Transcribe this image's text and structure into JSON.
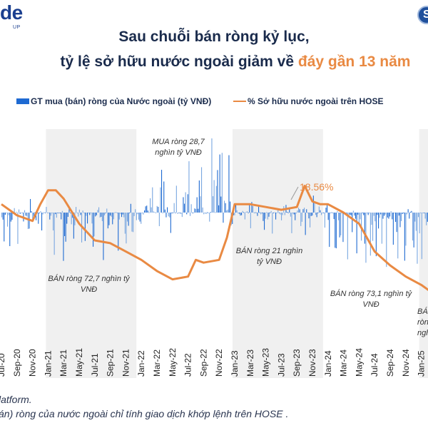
{
  "brand": {
    "logo_text": "de",
    "logo_sub": "UP",
    "badge_text": "S"
  },
  "title": {
    "line1": "Sau chuỗi bán ròng kỷ lục,",
    "line2_prefix": "tỷ lệ sở hữu nước ngoài giảm về ",
    "line2_highlight": "đáy gần 13 năm"
  },
  "colors": {
    "bar": "#1e6ad2",
    "line": "#e98a43",
    "shade": "#f0f0f0",
    "title": "#1a2b4c"
  },
  "legend": {
    "bar_label": "GT mua (bán) ròng của Nước ngoài (tỷ VNĐ)",
    "line_label": "% Sở hữu nước ngoài trên HOSE"
  },
  "annotations": {
    "sell_2021": "BÁN ròng 72,7 nghìn tỷ VNĐ",
    "buy_2022": "MUA ròng 28,7 nghìn tỷ VNĐ",
    "sell_2023": "BÁN ròng 21 nghìn tỷ VNĐ",
    "sell_2024": "BÁN ròng 73,1 nghìn tỷ VNĐ",
    "sell_2025": "BÁN ròng nghìn",
    "peak_label": "18.56%"
  },
  "footer": {
    "line1": "latform.",
    "line2": "án) ròng của nước ngoài chỉ tính giao dịch khớp lệnh trên HOSE ."
  },
  "chart_data": {
    "type": "bar+line",
    "title": "Sau chuỗi bán ròng kỷ lục, tỷ lệ sở hữu nước ngoài giảm về đáy gần 13 năm",
    "x_tick_labels": [
      "Jul-20",
      "Sep-20",
      "Nov-20",
      "Jan-21",
      "Mar-21",
      "May-21",
      "Jul-21",
      "Sep-21",
      "Nov-21",
      "Jan-22",
      "Mar-22",
      "May-22",
      "Jul-22",
      "Sep-22",
      "Nov-22",
      "Jan-23",
      "Mar-23",
      "May-23",
      "Jul-23",
      "Sep-23",
      "Nov-23",
      "Jan-24",
      "Mar-24",
      "May-24",
      "Jul-24",
      "Sep-24",
      "Nov-24",
      "Jan-25"
    ],
    "shaded_years": [
      "2021",
      "2023",
      "2025"
    ],
    "series": [
      {
        "name": "% Sở hữu nước ngoài trên HOSE",
        "type": "line",
        "x": [
          "Jul-20",
          "Sep-20",
          "Nov-20",
          "Dec-20",
          "Jan-21",
          "Feb-21",
          "Mar-21",
          "May-21",
          "Jul-21",
          "Sep-21",
          "Nov-21",
          "Jan-22",
          "Mar-22",
          "May-22",
          "Jul-22",
          "Aug-22",
          "Sep-22",
          "Nov-22",
          "Dec-22",
          "Jan-23",
          "Mar-23",
          "May-23",
          "Jul-23",
          "Sep-23",
          "Oct-23",
          "Nov-23",
          "Dec-23",
          "Jan-24",
          "Mar-24",
          "May-24",
          "Jul-24",
          "Sep-24",
          "Nov-24",
          "Jan-25",
          "Feb-25"
        ],
        "values": [
          17.9,
          17.5,
          17.3,
          17.9,
          18.4,
          18.4,
          18.1,
          17.2,
          16.6,
          16.5,
          16.2,
          15.9,
          15.5,
          15.2,
          15.3,
          15.9,
          15.8,
          15.9,
          16.7,
          17.9,
          17.9,
          17.8,
          17.7,
          17.8,
          18.56,
          18.0,
          17.9,
          17.9,
          17.6,
          17.2,
          16.2,
          15.7,
          15.3,
          15.0,
          14.8
        ]
      },
      {
        "name": "GT mua (bán) ròng của Nước ngoài (tỷ VNĐ)",
        "type": "bar",
        "note": "daily net buy/sell values; dense series"
      }
    ],
    "period_totals": [
      {
        "period": "2021",
        "label": "BÁN ròng 72,7 nghìn tỷ VNĐ"
      },
      {
        "period": "2022",
        "label": "MUA ròng 28,7 nghìn tỷ VNĐ"
      },
      {
        "period": "2023",
        "label": "BÁN ròng 21 nghìn tỷ VNĐ"
      },
      {
        "period": "2024",
        "label": "BÁN ròng 73,1 nghìn tỷ VNĐ"
      }
    ],
    "peak": {
      "x": "Oct-23",
      "value": 18.56,
      "label": "18.56%"
    },
    "legend_position": "top"
  }
}
